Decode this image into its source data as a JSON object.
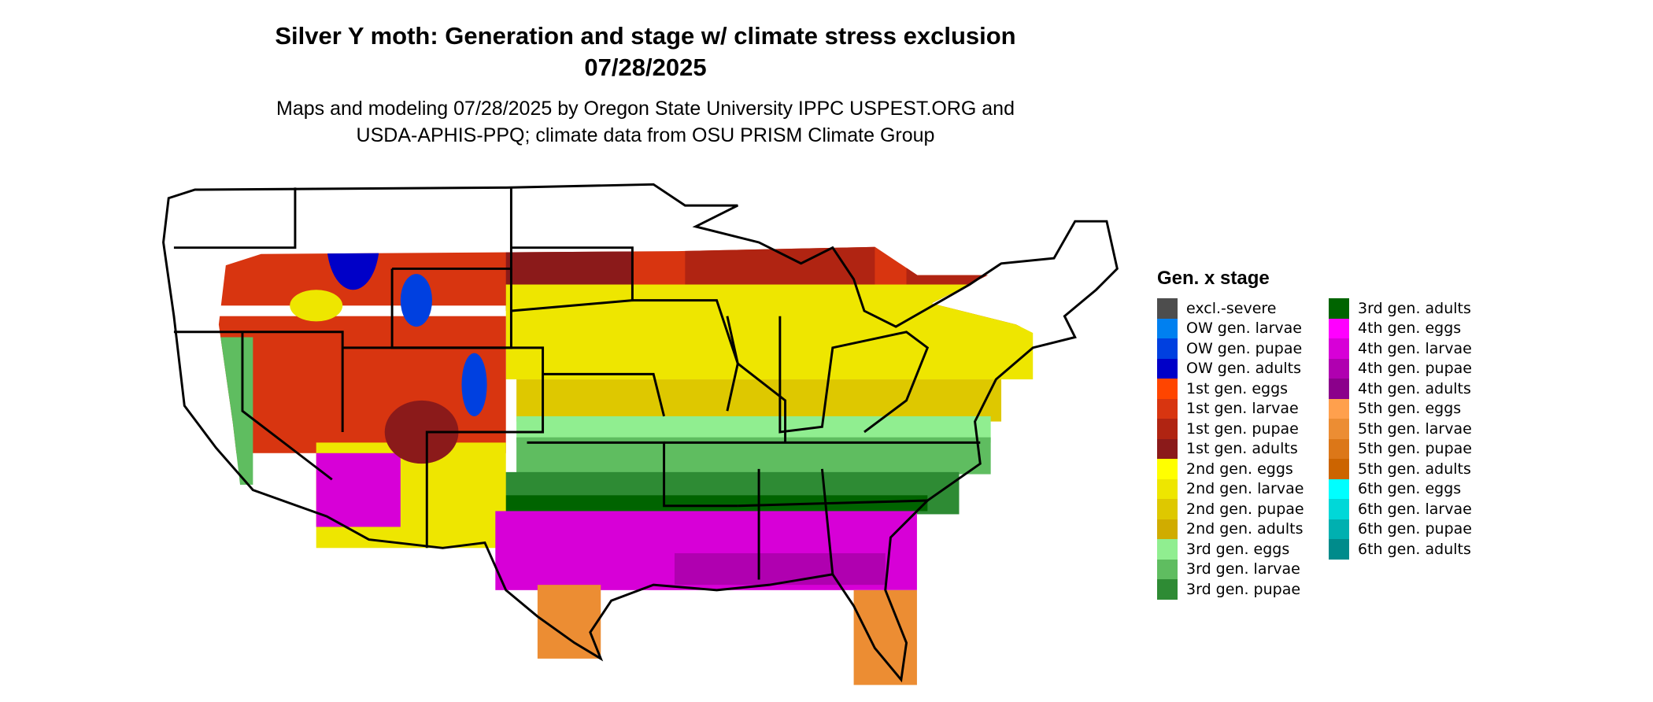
{
  "chart_data": {
    "type": "heatmap",
    "title": "Silver Y moth: Generation and stage w/ climate stress exclusion",
    "date": "07/28/2025",
    "subtitle_line1": "Maps and modeling 07/28/2025 by Oregon State University IPPC USPEST.ORG and",
    "subtitle_line2": "USDA-APHIS-PPQ; climate data from OSU PRISM Climate Group",
    "legend_title": "Gen. x stage",
    "legend_placement": "right",
    "legend": [
      {
        "label": "excl.-severe",
        "color": "#4d4d4d"
      },
      {
        "label": "OW gen. larvae",
        "color": "#0080f0"
      },
      {
        "label": "OW gen. pupae",
        "color": "#0040e0"
      },
      {
        "label": "OW gen. adults",
        "color": "#0000c8"
      },
      {
        "label": "1st gen. eggs",
        "color": "#ff4500"
      },
      {
        "label": "1st gen. larvae",
        "color": "#d83510"
      },
      {
        "label": "1st gen. pupae",
        "color": "#b02412"
      },
      {
        "label": "1st gen. adults",
        "color": "#8b1a1a"
      },
      {
        "label": "2nd gen. eggs",
        "color": "#ffff00"
      },
      {
        "label": "2nd gen. larvae",
        "color": "#eee600"
      },
      {
        "label": "2nd gen. pupae",
        "color": "#dec800"
      },
      {
        "label": "2nd gen. adults",
        "color": "#d0ac00"
      },
      {
        "label": "3rd gen. eggs",
        "color": "#90ee90"
      },
      {
        "label": "3rd gen. larvae",
        "color": "#5fbd60"
      },
      {
        "label": "3rd gen. pupae",
        "color": "#2e8b34"
      },
      {
        "label": "3rd gen. adults",
        "color": "#006400"
      },
      {
        "label": "4th gen. eggs",
        "color": "#ff00ff"
      },
      {
        "label": "4th gen. larvae",
        "color": "#d700d7"
      },
      {
        "label": "4th gen. pupae",
        "color": "#b000b0"
      },
      {
        "label": "4th gen. adults",
        "color": "#8b008b"
      },
      {
        "label": "5th gen. eggs",
        "color": "#ffa04d"
      },
      {
        "label": "5th gen. larvae",
        "color": "#ec8d33"
      },
      {
        "label": "5th gen. pupae",
        "color": "#dc7718"
      },
      {
        "label": "5th gen. adults",
        "color": "#cc6400"
      },
      {
        "label": "6th gen. eggs",
        "color": "#00ffff"
      },
      {
        "label": "6th gen. larvae",
        "color": "#00d8d8"
      },
      {
        "label": "6th gen. pupae",
        "color": "#00b0b0"
      },
      {
        "label": "6th gen. adults",
        "color": "#008b8b"
      }
    ]
  }
}
